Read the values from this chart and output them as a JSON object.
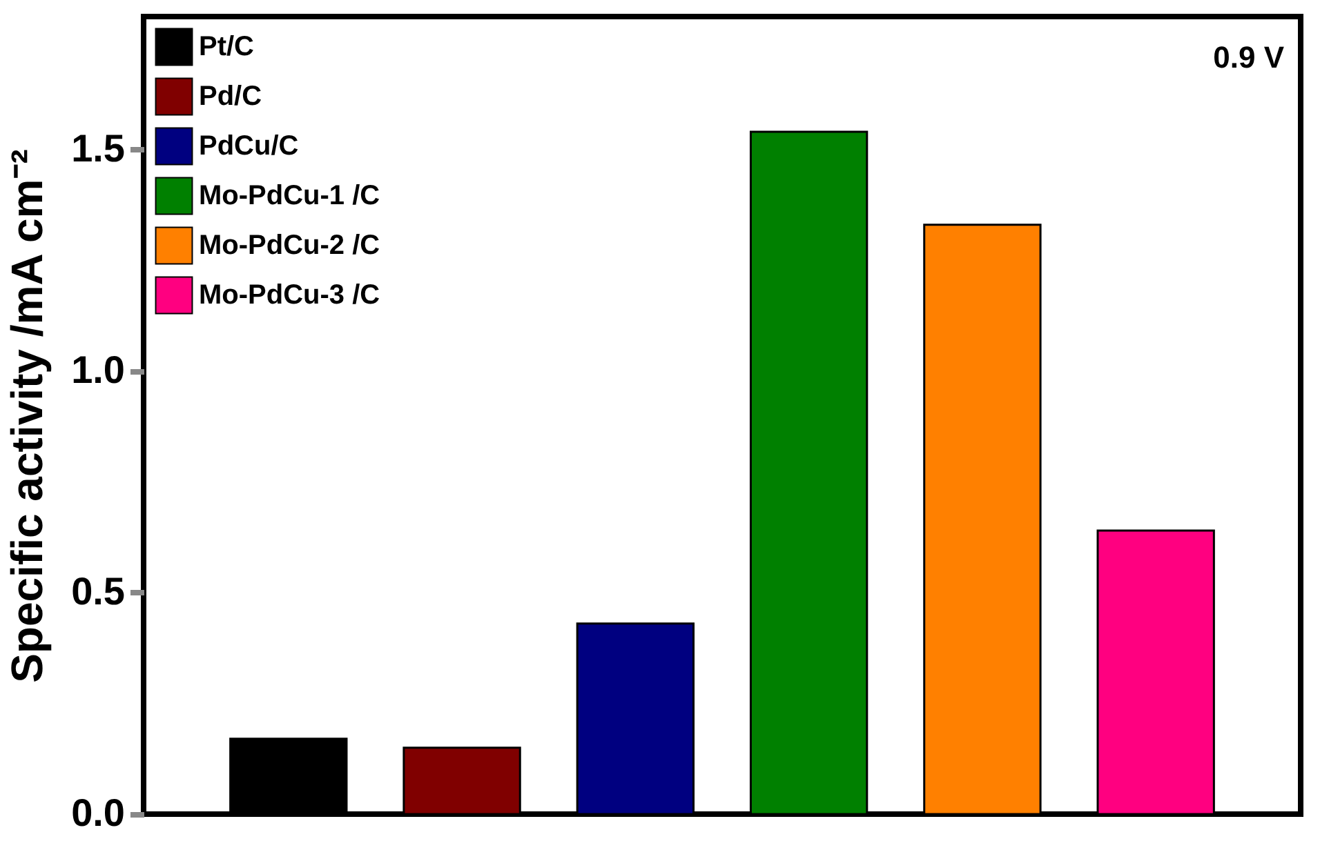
{
  "chart_data": {
    "type": "bar",
    "ylabel": "Specific activity /mA cm⁻²",
    "annotations": [
      "0.9 V"
    ],
    "categories": [
      null,
      null,
      null,
      null,
      null,
      null
    ],
    "stacked": true,
    "series": [
      {
        "name": "Pt/C",
        "color": "#000000",
        "values": [
          0.17,
          0,
          0,
          0,
          0,
          0
        ]
      },
      {
        "name": "Pd/C",
        "color": "#800000",
        "values": [
          0,
          0.15,
          0,
          0,
          0,
          0
        ]
      },
      {
        "name": "PdCu/C",
        "color": "#000080",
        "values": [
          0,
          0,
          0.43,
          0,
          0,
          0
        ]
      },
      {
        "name": "Mo-PdCu-1 /C",
        "color": "#008000",
        "values": [
          0,
          0,
          0,
          1.54,
          0,
          0
        ]
      },
      {
        "name": "Mo-PdCu-2 /C",
        "color": "#ff8000",
        "values": [
          0,
          0,
          0,
          0,
          1.33,
          0
        ]
      },
      {
        "name": "Mo-PdCu-3 /C",
        "color": "#ff0080",
        "values": [
          0,
          0,
          0,
          0,
          0,
          0.64
        ]
      }
    ],
    "ylim": [
      0,
      1.8
    ],
    "yticks": [
      {
        "value": 0,
        "label": "0.0"
      },
      {
        "value": 0.5,
        "label": "0.5"
      },
      {
        "value": 1,
        "label": "1.0"
      },
      {
        "value": 1.5,
        "label": "1.5"
      }
    ],
    "grid": false,
    "legend": "top left",
    "tick_labels": "y"
  }
}
